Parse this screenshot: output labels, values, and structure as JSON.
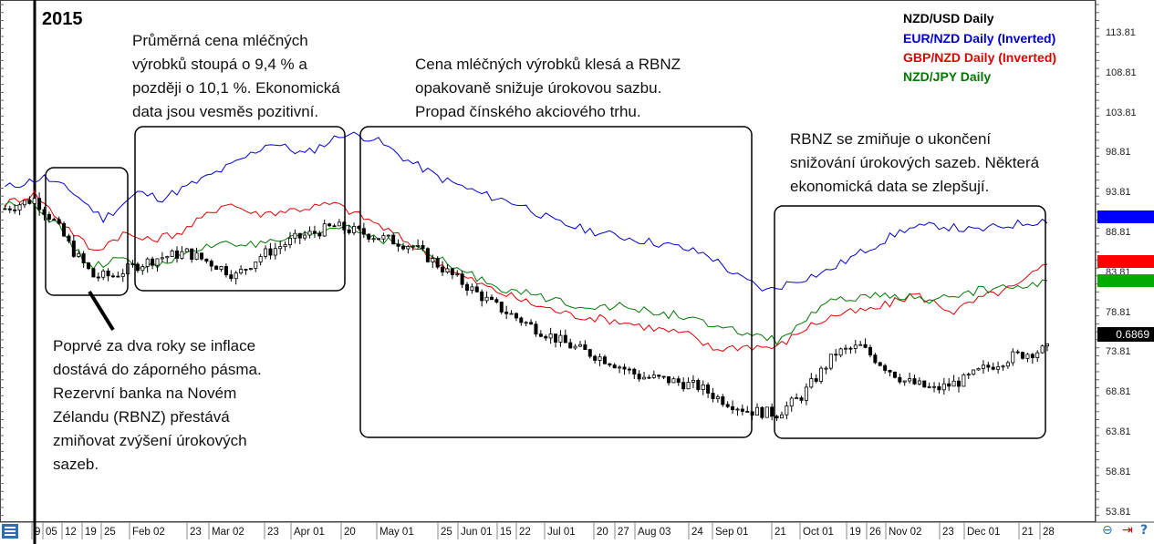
{
  "chart_data": {
    "type": "line",
    "year_label": "2015",
    "title": "NZD/USD Daily",
    "x_ticks": [
      "9",
      "05",
      "12",
      "19",
      "25",
      "Feb 02",
      "23",
      "Mar 02",
      "23",
      "Apr 01",
      "20",
      "May 01",
      "25",
      "Jun 01",
      "15",
      "22",
      "Jul 01",
      "20",
      "27",
      "Aug 03",
      "24",
      "Sep 01",
      "21",
      "Oct 01",
      "19",
      "26",
      "Nov 02",
      "23",
      "Dec 01",
      "21",
      "28"
    ],
    "y_ticks": [
      "113.81",
      "108.81",
      "103.81",
      "98.81",
      "93.81",
      "88.81",
      "83.81",
      "78.81",
      "73.81",
      "68.81",
      "63.81",
      "58.81",
      "53.81"
    ],
    "ylim": [
      53.81,
      113.81
    ],
    "current_price": "0.6869",
    "legend_colors": {
      "NZD/USD Daily": "#000000",
      "EUR/NZD Daily (Inverted)": "#0000cc",
      "GBP/NZD Daily (Inverted)": "#dd0000",
      "NZD/JPY Daily": "#007700"
    },
    "series": [
      {
        "name": "EUR/NZD Daily (Inverted)",
        "color": "#0000cc",
        "points": [
          [
            1,
            94.5
          ],
          [
            9,
            95.8
          ],
          [
            15,
            93.9
          ],
          [
            21,
            90.6
          ],
          [
            28,
            93.9
          ],
          [
            33,
            93.2
          ],
          [
            40,
            95.2
          ],
          [
            48,
            97.6
          ],
          [
            55,
            100.2
          ],
          [
            62,
            98.7
          ],
          [
            70,
            101.3
          ],
          [
            76,
            100.7
          ],
          [
            83,
            97.9
          ],
          [
            90,
            95.6
          ],
          [
            98,
            93.7
          ],
          [
            106,
            92.4
          ],
          [
            113,
            90.2
          ],
          [
            121,
            89.0
          ],
          [
            128,
            88.2
          ],
          [
            137,
            87.2
          ],
          [
            144,
            86.1
          ],
          [
            150,
            83.4
          ],
          [
            156,
            81.6
          ],
          [
            162,
            82.9
          ],
          [
            168,
            84.0
          ],
          [
            176,
            86.7
          ],
          [
            184,
            89.3
          ],
          [
            191,
            89.8
          ],
          [
            198,
            89.1
          ],
          [
            206,
            89.9
          ],
          [
            213,
            90.5
          ]
        ]
      },
      {
        "name": "GBP/NZD Daily (Inverted)",
        "color": "#dd0000",
        "points": [
          [
            1,
            92.5
          ],
          [
            7,
            93.8
          ],
          [
            13,
            90.0
          ],
          [
            19,
            86.5
          ],
          [
            25,
            88.8
          ],
          [
            30,
            87.9
          ],
          [
            37,
            89.0
          ],
          [
            46,
            92.7
          ],
          [
            52,
            91.2
          ],
          [
            60,
            91.8
          ],
          [
            68,
            92.5
          ],
          [
            76,
            90.2
          ],
          [
            84,
            87.3
          ],
          [
            92,
            84.0
          ],
          [
            100,
            81.8
          ],
          [
            108,
            80.0
          ],
          [
            116,
            78.6
          ],
          [
            126,
            77.8
          ],
          [
            133,
            76.9
          ],
          [
            140,
            76.1
          ],
          [
            145,
            74.3
          ],
          [
            152,
            74.7
          ],
          [
            158,
            74.5
          ],
          [
            164,
            77.0
          ],
          [
            170,
            78.6
          ],
          [
            178,
            79.3
          ],
          [
            186,
            81.2
          ],
          [
            194,
            79.0
          ],
          [
            200,
            80.8
          ],
          [
            207,
            82.2
          ],
          [
            213,
            85.0
          ]
        ]
      },
      {
        "name": "NZD/JPY Daily",
        "color": "#007700",
        "points": [
          [
            1,
            92.3
          ],
          [
            6,
            93.2
          ],
          [
            12,
            89.5
          ],
          [
            18,
            84.6
          ],
          [
            24,
            85.5
          ],
          [
            30,
            84.6
          ],
          [
            38,
            86.1
          ],
          [
            46,
            87.9
          ],
          [
            52,
            87.2
          ],
          [
            60,
            88.1
          ],
          [
            70,
            89.8
          ],
          [
            78,
            88.0
          ],
          [
            86,
            86.6
          ],
          [
            94,
            84.0
          ],
          [
            102,
            82.0
          ],
          [
            110,
            80.8
          ],
          [
            118,
            79.8
          ],
          [
            126,
            79.6
          ],
          [
            134,
            78.8
          ],
          [
            140,
            78.4
          ],
          [
            146,
            76.7
          ],
          [
            152,
            76.4
          ],
          [
            158,
            75.3
          ],
          [
            164,
            78.0
          ],
          [
            170,
            80.5
          ],
          [
            176,
            80.8
          ],
          [
            184,
            81.0
          ],
          [
            190,
            80.2
          ],
          [
            196,
            81.4
          ],
          [
            204,
            82.0
          ],
          [
            213,
            82.6
          ]
        ]
      },
      {
        "name": "NZD/USD Daily",
        "color": "#000000",
        "points": [
          [
            1,
            91.9
          ],
          [
            7,
            93.1
          ],
          [
            11,
            90.3
          ],
          [
            15,
            86.5
          ],
          [
            19,
            83.4
          ],
          [
            23,
            83.5
          ],
          [
            27,
            84.6
          ],
          [
            32,
            85.7
          ],
          [
            38,
            86.4
          ],
          [
            44,
            84.8
          ],
          [
            48,
            83.5
          ],
          [
            53,
            86.0
          ],
          [
            60,
            88.1
          ],
          [
            68,
            89.7
          ],
          [
            76,
            88.5
          ],
          [
            84,
            87.2
          ],
          [
            92,
            83.5
          ],
          [
            100,
            80.0
          ],
          [
            108,
            77.2
          ],
          [
            116,
            74.7
          ],
          [
            124,
            72.8
          ],
          [
            130,
            70.9
          ],
          [
            136,
            70.4
          ],
          [
            142,
            69.6
          ],
          [
            146,
            68.2
          ],
          [
            152,
            66.6
          ],
          [
            158,
            66.2
          ],
          [
            163,
            68.4
          ],
          [
            170,
            73.8
          ],
          [
            175,
            74.6
          ],
          [
            180,
            72.1
          ],
          [
            184,
            70.3
          ],
          [
            190,
            69.2
          ],
          [
            196,
            70.4
          ],
          [
            200,
            71.8
          ],
          [
            206,
            73.4
          ],
          [
            213,
            74.3
          ]
        ]
      }
    ]
  },
  "annotations": {
    "jan": "Poprvé za dva roky se inflace\ndostává do záporného pásma.\nRezervní banka na Novém\nZélandu (RBNZ) přestává\nzmiňovat zvýšení úrokových\nsazeb.",
    "feb_apr": "Průměrná cena mléčných\nvýrobků stoupá o 9,4 % a\npozději o 10,1 %. Ekonomická\ndata jsou vesměs pozitivní.",
    "may_sep": "Cena mléčných výrobků klesá a RBNZ\nopakovaně snižuje úrokovou sazbu.\nPropad čínského akciového trhu.",
    "sep_dec": "RBNZ se zmiňuje o ukončení\nsnižování úrokových sazeb. Některá\nekonomická data se zlepšují."
  }
}
